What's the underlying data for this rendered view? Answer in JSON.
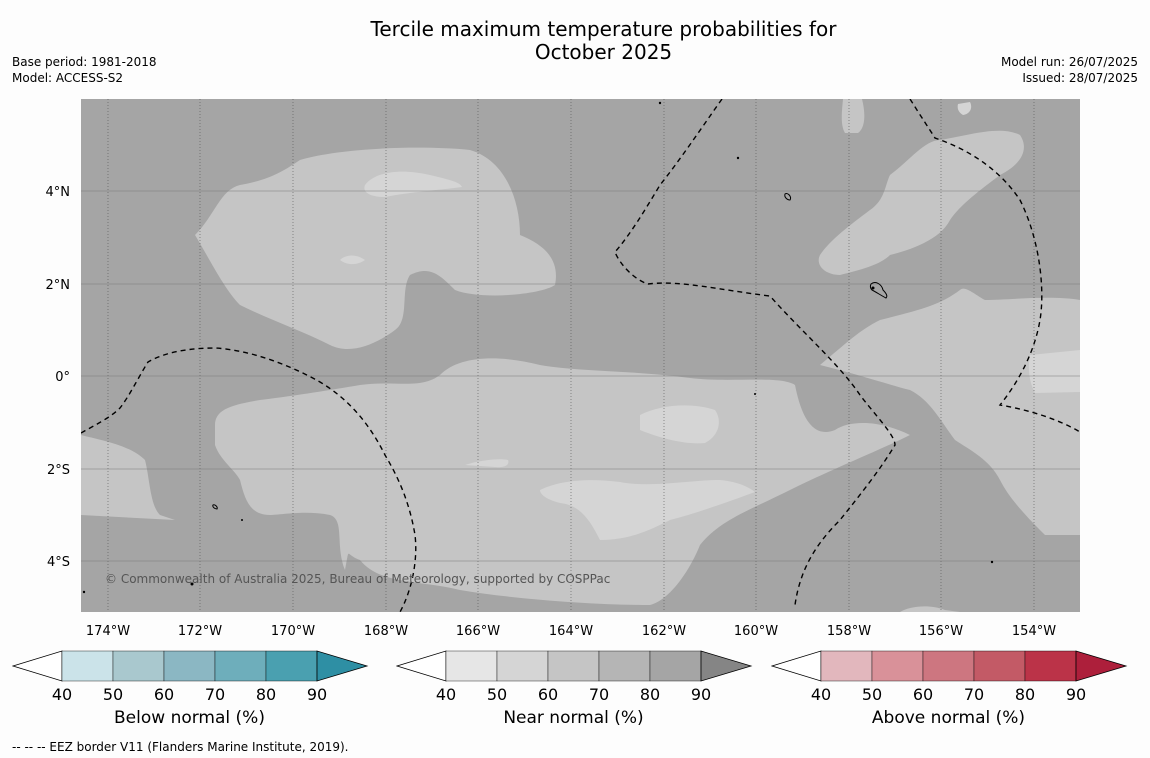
{
  "title_line1": "Tercile maximum temperature probabilities for",
  "title_line2": "October 2025",
  "base_period": "Base period: 1981-2018",
  "model": "Model: ACCESS-S2",
  "model_run": "Model run: 26/07/2025",
  "issued": "Issued: 28/07/2025",
  "copyright": "© Commonwealth of Australia 2025, Bureau of Meteorology, supported by COSPPac",
  "lon_labels": [
    "174°W",
    "172°W",
    "170°W",
    "168°W",
    "166°W",
    "164°W",
    "162°W",
    "160°W",
    "158°W",
    "156°W",
    "154°W"
  ],
  "lat_labels": [
    "4°N",
    "2°N",
    "0°",
    "2°S",
    "4°S"
  ],
  "colorbars": [
    {
      "title": "Below normal (%)",
      "ticks": [
        "40",
        "50",
        "60",
        "70",
        "80",
        "90"
      ],
      "colors": [
        "#ffffff",
        "#cbe3e9",
        "#a9c8ce",
        "#8bb7c3",
        "#6eaebb",
        "#4aa0b0",
        "#2e8fa4"
      ]
    },
    {
      "title": "Near normal (%)",
      "ticks": [
        "40",
        "50",
        "60",
        "70",
        "80",
        "90"
      ],
      "colors": [
        "#ffffff",
        "#e6e6e6",
        "#d5d5d5",
        "#c5c5c5",
        "#b5b5b5",
        "#a5a5a5",
        "#858585"
      ]
    },
    {
      "title": "Above normal (%)",
      "ticks": [
        "40",
        "50",
        "60",
        "70",
        "80",
        "90"
      ],
      "colors": [
        "#ffffff",
        "#e2b7bd",
        "#d99199",
        "#cd7680",
        "#c35a66",
        "#bb3348",
        "#ad1f3b"
      ]
    }
  ],
  "eez_note": "--  --  -- EEZ border V11 (Flanders Marine Institute, 2019)."
}
